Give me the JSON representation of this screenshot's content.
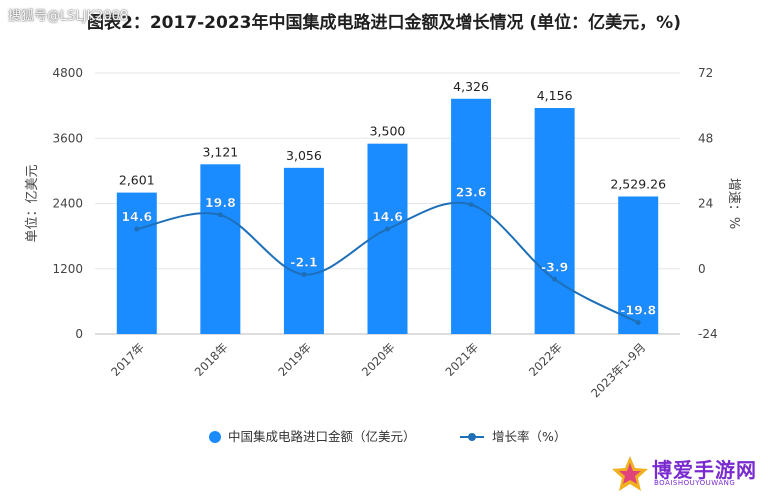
{
  "watermark": "搜狐号@LSLJK2008",
  "logo": {
    "name": "博爱手游网",
    "sub": "BOAISHOUYOUWANG"
  },
  "colors": {
    "bar": "#1a8cff",
    "line": "#1e6fb8",
    "axis": "#999999",
    "text": "#444444"
  },
  "chart_data": {
    "type": "bar",
    "title": "图表2：2017-2023年中国集成电路进口金额及增长情况 (单位：亿美元，%)",
    "categories": [
      "2017年",
      "2018年",
      "2019年",
      "2020年",
      "2021年",
      "2022年",
      "2023年1-9月"
    ],
    "ylabel": "单位：亿美元",
    "y2label": "增速：%",
    "ylim": [
      0,
      4800
    ],
    "yticks": [
      "0",
      "1200",
      "2400",
      "3600",
      "4800"
    ],
    "y2lim": [
      -24,
      72
    ],
    "y2ticks": [
      "-24",
      "0",
      "24",
      "48",
      "72"
    ],
    "series": [
      {
        "name": "中国集成电路进口金额（亿美元）",
        "type": "bar",
        "values": [
          2601,
          3121,
          3056,
          3500,
          4326,
          4156,
          2529.26
        ],
        "labels": [
          "2,601",
          "3,121",
          "3,056",
          "3,500",
          "4,326",
          "4,156",
          "2,529.26"
        ]
      },
      {
        "name": "增长率（%）",
        "type": "line",
        "axis": "right",
        "values": [
          14.6,
          19.8,
          -2.1,
          14.6,
          23.6,
          -3.9,
          -19.8
        ],
        "labels": [
          "14.6",
          "19.8",
          "-2.1",
          "14.6",
          "23.6",
          "-3.9",
          "-19.8"
        ]
      }
    ],
    "legend": "bottom",
    "grid": true
  }
}
